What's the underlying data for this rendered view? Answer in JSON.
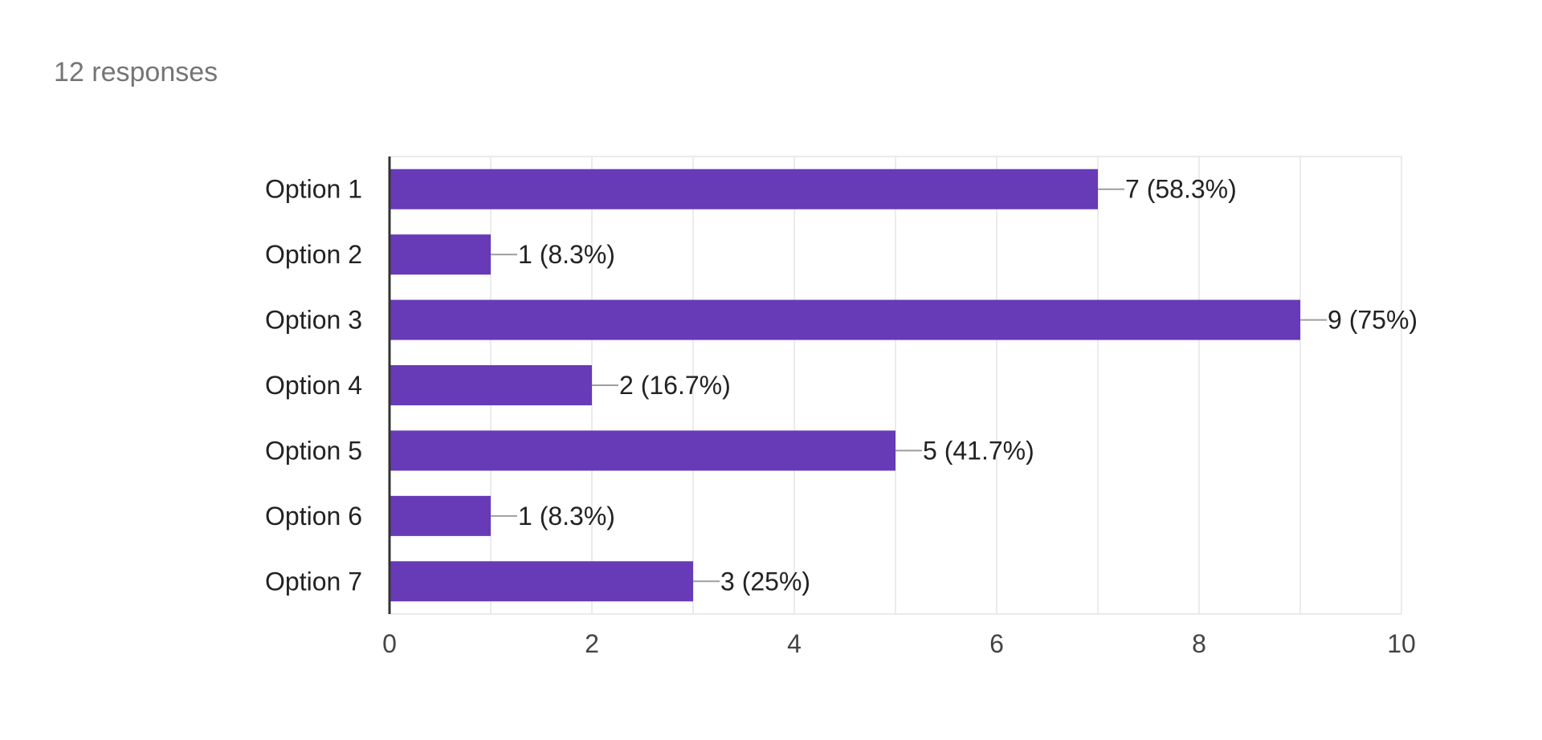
{
  "summary": {
    "responses_label": "12 responses"
  },
  "colors": {
    "bar": "#673ab7",
    "grid": "#ebebeb",
    "axis": "#333333",
    "leader": "#9e9e9e",
    "text": "#222222",
    "tick_text": "#444444",
    "summary_text": "#757575"
  },
  "chart_data": {
    "type": "bar",
    "orientation": "horizontal",
    "categories": [
      "Option 1",
      "Option 2",
      "Option 3",
      "Option 4",
      "Option 5",
      "Option 6",
      "Option 7"
    ],
    "values": [
      7,
      1,
      9,
      2,
      5,
      1,
      3
    ],
    "data_labels": [
      "7 (58.3%)",
      "1 (8.3%)",
      "9 (75%)",
      "2 (16.7%)",
      "5 (41.7%)",
      "1 (8.3%)",
      "3 (25%)"
    ],
    "x_ticks": [
      "0",
      "2",
      "4",
      "6",
      "8",
      "10"
    ],
    "xlim": [
      0,
      10
    ],
    "grid": true,
    "legend": "none"
  }
}
